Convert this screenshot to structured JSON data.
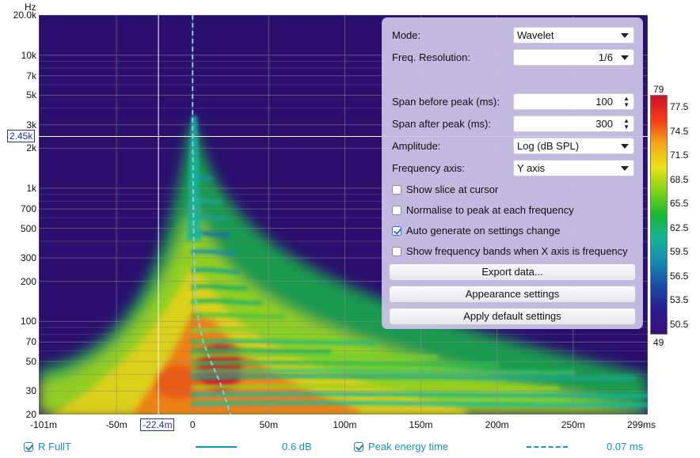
{
  "y_axis": {
    "unit": "Hz",
    "ticks": [
      {
        "label": "20.0k",
        "hz": 20000
      },
      {
        "label": "10k",
        "hz": 10000
      },
      {
        "label": "7k",
        "hz": 7000
      },
      {
        "label": "5k",
        "hz": 5000
      },
      {
        "label": "3k",
        "hz": 3000
      },
      {
        "label": "2k",
        "hz": 2000
      },
      {
        "label": "1k",
        "hz": 1000
      },
      {
        "label": "700",
        "hz": 700
      },
      {
        "label": "500",
        "hz": 500
      },
      {
        "label": "300",
        "hz": 300
      },
      {
        "label": "200",
        "hz": 200
      },
      {
        "label": "100",
        "hz": 100
      },
      {
        "label": "70",
        "hz": 70
      },
      {
        "label": "50",
        "hz": 50
      },
      {
        "label": "30",
        "hz": 30
      },
      {
        "label": "20",
        "hz": 20
      }
    ],
    "cursor_label": "2.45k",
    "cursor_hz": 2450
  },
  "x_axis": {
    "unit": "ms",
    "ticks": [
      {
        "label": "-101m",
        "ms": -101
      },
      {
        "label": "-50m",
        "ms": -50
      },
      {
        "label": "0",
        "ms": 0
      },
      {
        "label": "50m",
        "ms": 50
      },
      {
        "label": "100m",
        "ms": 100
      },
      {
        "label": "150m",
        "ms": 150
      },
      {
        "label": "200m",
        "ms": 200
      },
      {
        "label": "250m",
        "ms": 250
      },
      {
        "label": "299ms",
        "ms": 299
      }
    ],
    "cursor_label": "-22.4m",
    "cursor_ms": -22.4
  },
  "settings": {
    "mode_label": "Mode:",
    "mode_value": "Wavelet",
    "freq_res_label": "Freq. Resolution:",
    "freq_res_value": "1/6",
    "span_before_label": "Span before peak (ms):",
    "span_before_value": "100",
    "span_after_label": "Span after peak (ms):",
    "span_after_value": "300",
    "amplitude_label": "Amplitude:",
    "amplitude_value": "Log (dB SPL)",
    "freq_axis_label": "Frequency axis:",
    "freq_axis_value": "Y axis",
    "checkboxes": [
      {
        "label": "Show slice at cursor",
        "checked": false
      },
      {
        "label": "Normalise to peak at each frequency",
        "checked": false
      },
      {
        "label": "Auto generate on settings change",
        "checked": true
      },
      {
        "label": "Show frequency bands when X axis is frequency",
        "checked": false
      }
    ],
    "export_btn": "Export data...",
    "appearance_btn": "Appearance settings",
    "defaults_btn": "Apply default settings"
  },
  "colorbar": {
    "max_label": "79",
    "min_label": "49",
    "ticks": [
      "77.5",
      "74.5",
      "71.5",
      "68.5",
      "65.5",
      "62.5",
      "59.5",
      "56.5",
      "53.5",
      "50.5"
    ],
    "colors": [
      "#d0102a",
      "#f23a1a",
      "#f6a41a",
      "#e8e418",
      "#82d41a",
      "#18b82e",
      "#16b49a",
      "#1688b0",
      "#1a4aa8",
      "#2a1a8e",
      "#3a0f78"
    ]
  },
  "legend": {
    "series_name": "R FullT",
    "series_value": "0.6 dB",
    "peak_label": "Peak energy time",
    "peak_value": "0.07 ms",
    "color": "#1593b8"
  }
}
